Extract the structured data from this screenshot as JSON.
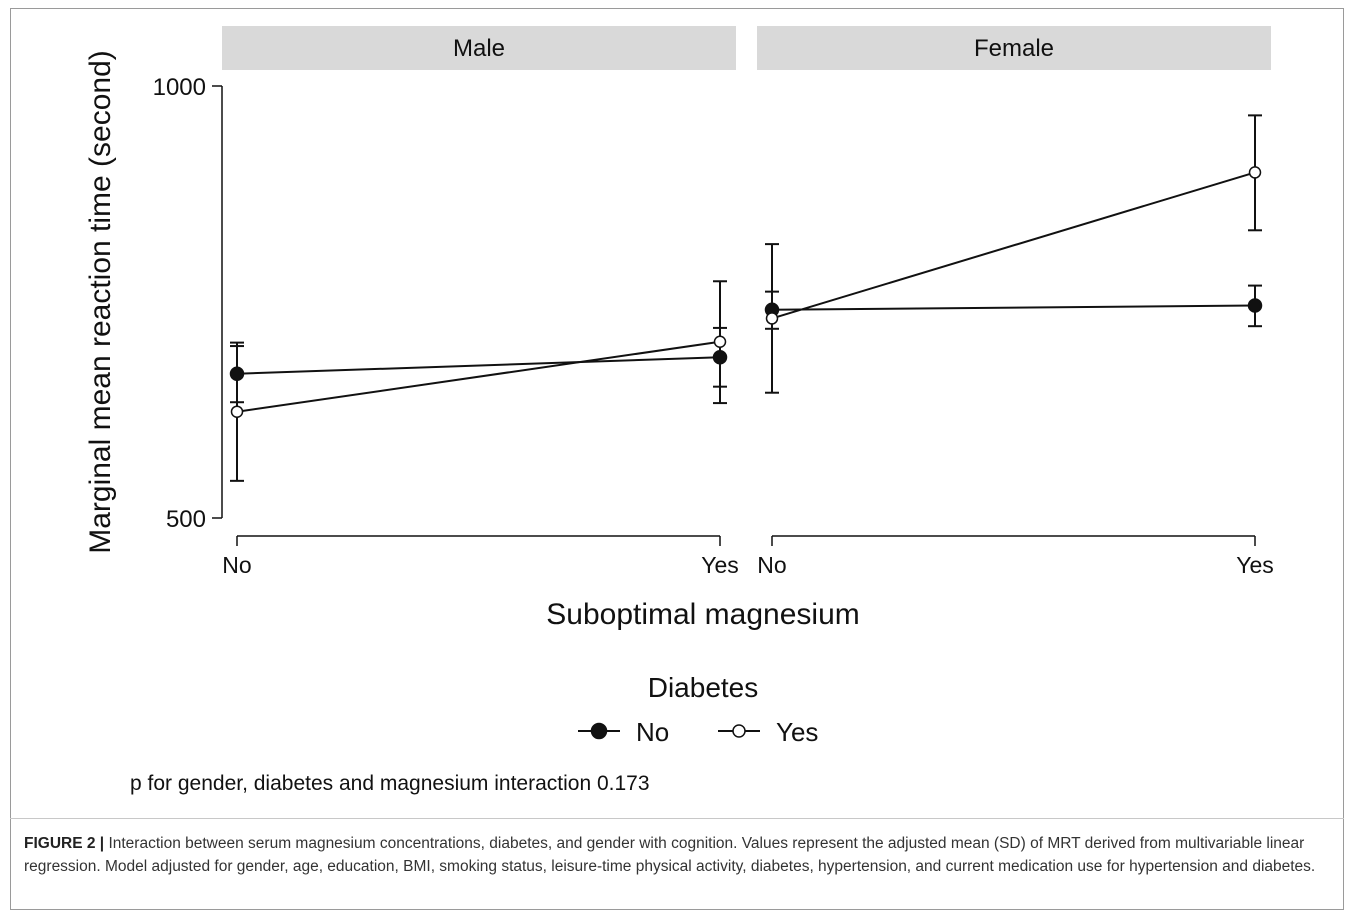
{
  "chart_data": {
    "type": "line",
    "ylabel": "Marginal mean reaction time (second)",
    "xlabel": "Suboptimal magnesium",
    "categories": [
      "No",
      "Yes"
    ],
    "ylim": [
      500,
      1000
    ],
    "yticks": [
      500,
      1000
    ],
    "grid": false,
    "panels": [
      {
        "title": "Male",
        "series": [
          {
            "name": "No",
            "values": [
              667,
              686
            ],
            "err_low": [
              634,
              652
            ],
            "err_high": [
              699,
              720
            ]
          },
          {
            "name": "Yes",
            "values": [
              623,
              704
            ],
            "err_low": [
              543,
              633
            ],
            "err_high": [
              703,
              774
            ]
          }
        ]
      },
      {
        "title": "Female",
        "series": [
          {
            "name": "No",
            "values": [
              741,
              746
            ],
            "err_low": [
              719,
              722
            ],
            "err_high": [
              762,
              769
            ]
          },
          {
            "name": "Yes",
            "values": [
              731,
              900
            ],
            "err_low": [
              645,
              833
            ],
            "err_high": [
              817,
              966
            ]
          }
        ]
      }
    ],
    "legend": {
      "title": "Diabetes",
      "position": "bottom",
      "entries": [
        "No",
        "Yes"
      ]
    }
  },
  "note": "p for gender, diabetes and magnesium interaction 0.173",
  "caption": {
    "label": "FIGURE 2 |",
    "text": "Interaction between serum magnesium concentrations, diabetes, and gender with cognition. Values represent the adjusted mean (SD) of MRT derived from multivariable linear regression. Model adjusted for gender, age, education, BMI, smoking status, leisure-time physical activity, diabetes, hypertension, and current medication use for hypertension and diabetes."
  }
}
